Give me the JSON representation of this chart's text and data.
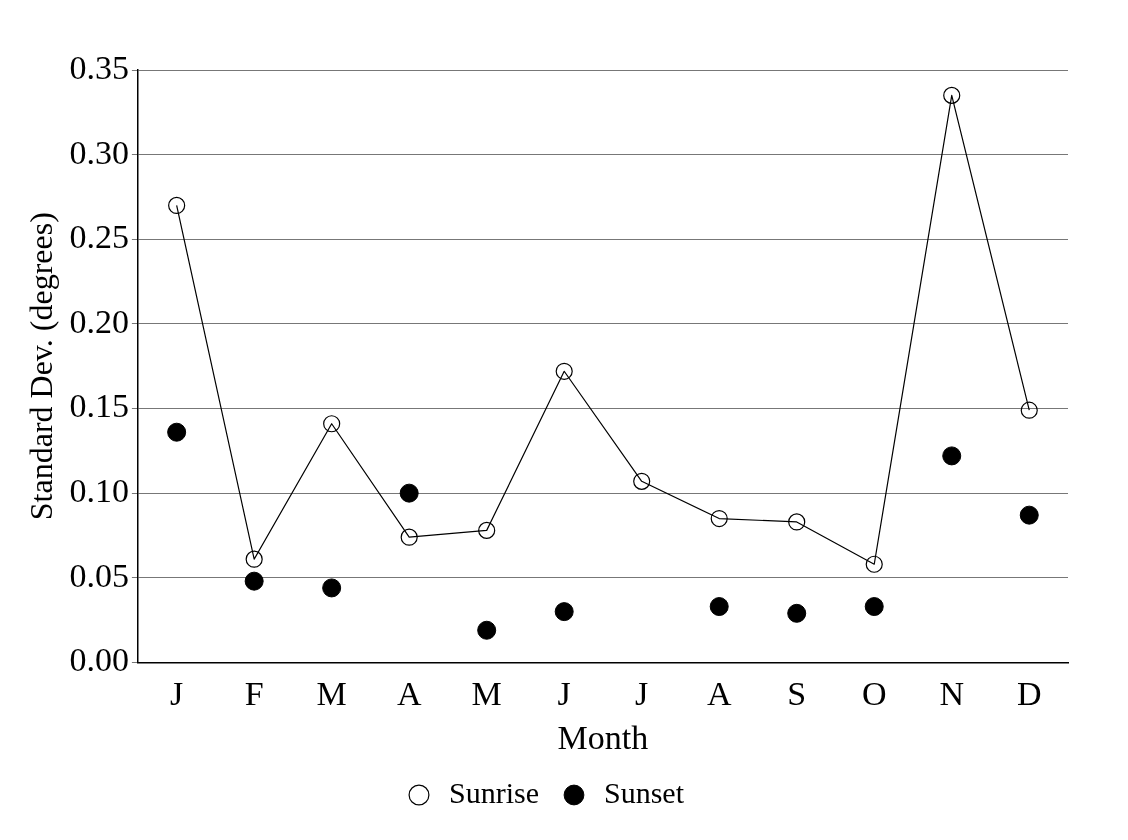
{
  "chart_data": {
    "type": "line",
    "xlabel": "Month",
    "ylabel": "Standard Dev. (degrees)",
    "categories": [
      "J",
      "F",
      "M",
      "A",
      "M",
      "J",
      "J",
      "A",
      "S",
      "O",
      "N",
      "D"
    ],
    "series": [
      {
        "name": "Sunrise",
        "type": "line",
        "color": "#000000",
        "values": [
          0.27,
          0.061,
          0.141,
          0.074,
          0.078,
          0.172,
          0.107,
          0.085,
          0.083,
          0.058,
          0.335,
          0.149
        ]
      },
      {
        "name": "Sunset",
        "type": "scatter",
        "color": "#000000",
        "values": [
          0.136,
          0.048,
          0.044,
          0.1,
          0.019,
          0.03,
          null,
          0.033,
          0.029,
          0.033,
          0.122,
          0.087
        ]
      }
    ],
    "ylim": [
      0,
      0.35
    ],
    "yticks": [
      {
        "value": 0,
        "label": "0.00"
      },
      {
        "value": 0.05,
        "label": "0.05"
      },
      {
        "value": 0.1,
        "label": "0.10"
      },
      {
        "value": 0.15,
        "label": "0.15"
      },
      {
        "value": 0.2,
        "label": "0.20"
      },
      {
        "value": 0.25,
        "label": "0.25"
      },
      {
        "value": 0.3,
        "label": "0.30"
      },
      {
        "value": 0.35,
        "label": "0.35"
      }
    ],
    "grid": "y",
    "legend": "bottom",
    "marker": "circle",
    "line_style": "solid"
  }
}
